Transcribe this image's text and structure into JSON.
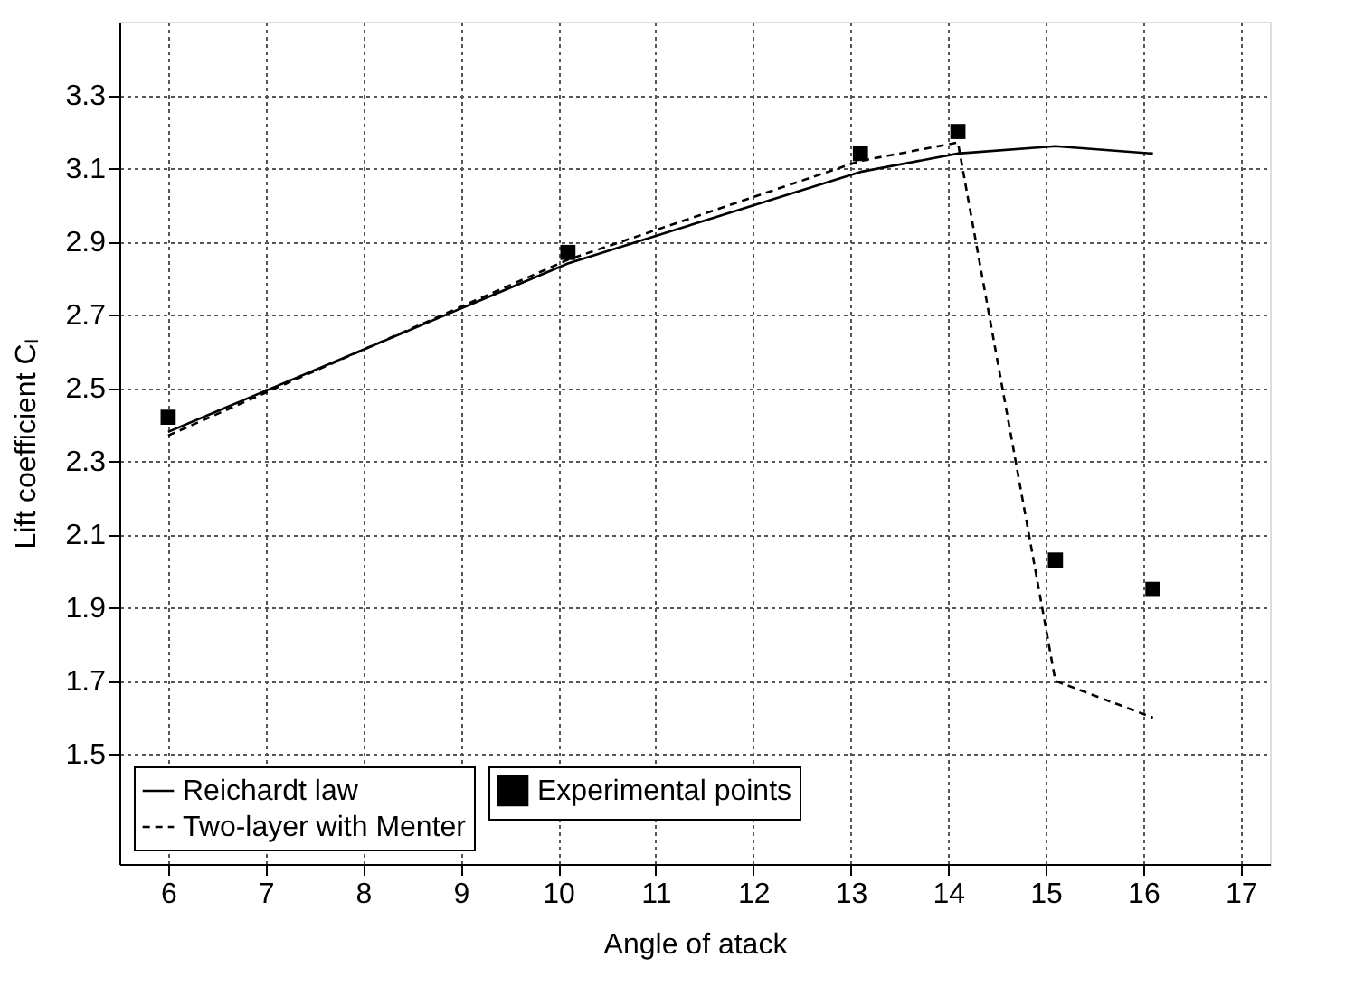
{
  "chart_data": {
    "type": "line",
    "xlabel": "Angle of atack",
    "ylabel": "Lift coefficient Cₗ",
    "x": [
      6,
      10.1,
      13.1,
      14.1,
      15.1,
      16.1
    ],
    "series": [
      {
        "name": "Reichardt law",
        "color": "#000000",
        "line_style": "solid",
        "marker": "none",
        "values": [
          2.38,
          2.84,
          3.09,
          3.14,
          3.16,
          3.14
        ]
      },
      {
        "name": "Two-layer with Menter",
        "color": "#000000",
        "line_style": "dashed",
        "marker": "none",
        "values": [
          2.37,
          2.85,
          3.12,
          3.17,
          1.7,
          1.6
        ]
      },
      {
        "name": "Experimental points",
        "type": "scatter",
        "color": "#000000",
        "marker": "square",
        "values": [
          2.42,
          2.87,
          3.14,
          3.2,
          2.03,
          1.95
        ]
      }
    ],
    "xlim": [
      5.5,
      17.3
    ],
    "xticks": [
      6,
      7,
      8,
      9,
      10,
      11,
      12,
      13,
      14,
      15,
      16,
      17
    ],
    "ylim": [
      1.2,
      3.5
    ],
    "yticks": [
      1.5,
      1.7,
      1.9,
      2.1,
      2.3,
      2.5,
      2.7,
      2.9,
      3.1,
      3.3
    ],
    "grid": true,
    "legend": "bottom left"
  }
}
